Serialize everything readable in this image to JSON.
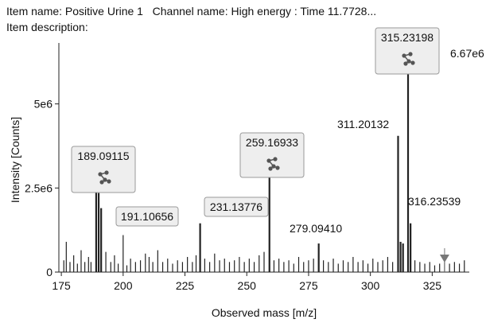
{
  "header": {
    "item_name_label": "Item name:",
    "item_name": "Positive Urine 1",
    "channel_label": "Channel name:",
    "channel": "High energy : Time 11.7728...",
    "description_label": "Item description:"
  },
  "colors": {
    "stick": "#222222",
    "callout_fill": "#eeeeee",
    "callout_border": "#9a9a9a",
    "structure_icon": "#555555",
    "marker": "#777777"
  },
  "chart_data": {
    "type": "bar",
    "subtype": "mass-spectrum-sticks",
    "xlabel": "Observed mass [m/z]",
    "ylabel": "Intensity [Counts]",
    "xlim": [
      174,
      340
    ],
    "ylim": [
      0,
      6670000.0
    ],
    "x_ticks": [
      175,
      200,
      225,
      250,
      275,
      300,
      325
    ],
    "y_ticks": [
      {
        "value": 0,
        "label": "0"
      },
      {
        "value": 2500000.0,
        "label": "2.5e6"
      },
      {
        "value": 5000000.0,
        "label": "5e6"
      }
    ],
    "max_label": "6.67e6",
    "major_peaks": [
      {
        "mz": 189.09115,
        "intensity": 2450000.0,
        "label": "189.09115",
        "structure_icon": true
      },
      {
        "mz": 190.1,
        "intensity": 2350000.0
      },
      {
        "mz": 191.10656,
        "intensity": 1900000.0,
        "label": "191.10656"
      },
      {
        "mz": 231.13776,
        "intensity": 1450000.0,
        "label": "231.13776"
      },
      {
        "mz": 259.16933,
        "intensity": 2950000.0,
        "label": "259.16933",
        "structure_icon": true
      },
      {
        "mz": 279.0941,
        "intensity": 850000.0,
        "label": "279.09410"
      },
      {
        "mz": 311.20132,
        "intensity": 4050000.0,
        "label": "311.20132"
      },
      {
        "mz": 312.2,
        "intensity": 900000.0
      },
      {
        "mz": 313.2,
        "intensity": 850000.0
      },
      {
        "mz": 315.23198,
        "intensity": 6000000.0,
        "label": "315.23198",
        "structure_icon": true
      },
      {
        "mz": 316.23539,
        "intensity": 1450000.0,
        "label": "316.23539"
      }
    ],
    "minor_peaks": [
      {
        "mz": 176,
        "intensity": 350000.0
      },
      {
        "mz": 177,
        "intensity": 900000.0
      },
      {
        "mz": 178.5,
        "intensity": 300000.0
      },
      {
        "mz": 180,
        "intensity": 500000.0
      },
      {
        "mz": 181.5,
        "intensity": 250000.0
      },
      {
        "mz": 183,
        "intensity": 650000.0
      },
      {
        "mz": 184.5,
        "intensity": 300000.0
      },
      {
        "mz": 186,
        "intensity": 450000.0
      },
      {
        "mz": 187,
        "intensity": 300000.0
      },
      {
        "mz": 193,
        "intensity": 600000.0
      },
      {
        "mz": 195,
        "intensity": 300000.0
      },
      {
        "mz": 196.5,
        "intensity": 500000.0
      },
      {
        "mz": 198,
        "intensity": 250000.0
      },
      {
        "mz": 200,
        "intensity": 1100000.0
      },
      {
        "mz": 201.5,
        "intensity": 200000.0
      },
      {
        "mz": 203,
        "intensity": 400000.0
      },
      {
        "mz": 205,
        "intensity": 300000.0
      },
      {
        "mz": 207,
        "intensity": 350000.0
      },
      {
        "mz": 209,
        "intensity": 550000.0
      },
      {
        "mz": 210.5,
        "intensity": 450000.0
      },
      {
        "mz": 212,
        "intensity": 300000.0
      },
      {
        "mz": 214,
        "intensity": 650000.0
      },
      {
        "mz": 216,
        "intensity": 300000.0
      },
      {
        "mz": 218,
        "intensity": 400000.0
      },
      {
        "mz": 220,
        "intensity": 250000.0
      },
      {
        "mz": 222,
        "intensity": 350000.0
      },
      {
        "mz": 224,
        "intensity": 300000.0
      },
      {
        "mz": 226,
        "intensity": 450000.0
      },
      {
        "mz": 228,
        "intensity": 300000.0
      },
      {
        "mz": 229.5,
        "intensity": 500000.0
      },
      {
        "mz": 233,
        "intensity": 400000.0
      },
      {
        "mz": 235,
        "intensity": 300000.0
      },
      {
        "mz": 237,
        "intensity": 550000.0
      },
      {
        "mz": 239,
        "intensity": 350000.0
      },
      {
        "mz": 241,
        "intensity": 400000.0
      },
      {
        "mz": 243,
        "intensity": 300000.0
      },
      {
        "mz": 245,
        "intensity": 350000.0
      },
      {
        "mz": 247,
        "intensity": 450000.0
      },
      {
        "mz": 249,
        "intensity": 300000.0
      },
      {
        "mz": 251,
        "intensity": 400000.0
      },
      {
        "mz": 253,
        "intensity": 300000.0
      },
      {
        "mz": 255,
        "intensity": 500000.0
      },
      {
        "mz": 257,
        "intensity": 600000.0
      },
      {
        "mz": 261,
        "intensity": 350000.0
      },
      {
        "mz": 263,
        "intensity": 400000.0
      },
      {
        "mz": 265,
        "intensity": 300000.0
      },
      {
        "mz": 267,
        "intensity": 350000.0
      },
      {
        "mz": 269,
        "intensity": 250000.0
      },
      {
        "mz": 271,
        "intensity": 450000.0
      },
      {
        "mz": 273,
        "intensity": 300000.0
      },
      {
        "mz": 275,
        "intensity": 350000.0
      },
      {
        "mz": 277,
        "intensity": 400000.0
      },
      {
        "mz": 281,
        "intensity": 350000.0
      },
      {
        "mz": 283,
        "intensity": 300000.0
      },
      {
        "mz": 285,
        "intensity": 400000.0
      },
      {
        "mz": 287,
        "intensity": 250000.0
      },
      {
        "mz": 289,
        "intensity": 350000.0
      },
      {
        "mz": 291,
        "intensity": 300000.0
      },
      {
        "mz": 293,
        "intensity": 450000.0
      },
      {
        "mz": 295,
        "intensity": 300000.0
      },
      {
        "mz": 297,
        "intensity": 350000.0
      },
      {
        "mz": 299,
        "intensity": 250000.0
      },
      {
        "mz": 301,
        "intensity": 400000.0
      },
      {
        "mz": 303,
        "intensity": 300000.0
      },
      {
        "mz": 305,
        "intensity": 350000.0
      },
      {
        "mz": 307,
        "intensity": 450000.0
      },
      {
        "mz": 309,
        "intensity": 300000.0
      },
      {
        "mz": 318,
        "intensity": 350000.0
      },
      {
        "mz": 320,
        "intensity": 300000.0
      },
      {
        "mz": 322,
        "intensity": 250000.0
      },
      {
        "mz": 324,
        "intensity": 300000.0
      },
      {
        "mz": 326,
        "intensity": 200000.0
      },
      {
        "mz": 328,
        "intensity": 250000.0
      },
      {
        "mz": 330,
        "intensity": 300000.0
      },
      {
        "mz": 332,
        "intensity": 250000.0
      },
      {
        "mz": 334,
        "intensity": 300000.0
      },
      {
        "mz": 336,
        "intensity": 250000.0
      },
      {
        "mz": 338,
        "intensity": 350000.0
      }
    ],
    "marker_mz": 330
  }
}
